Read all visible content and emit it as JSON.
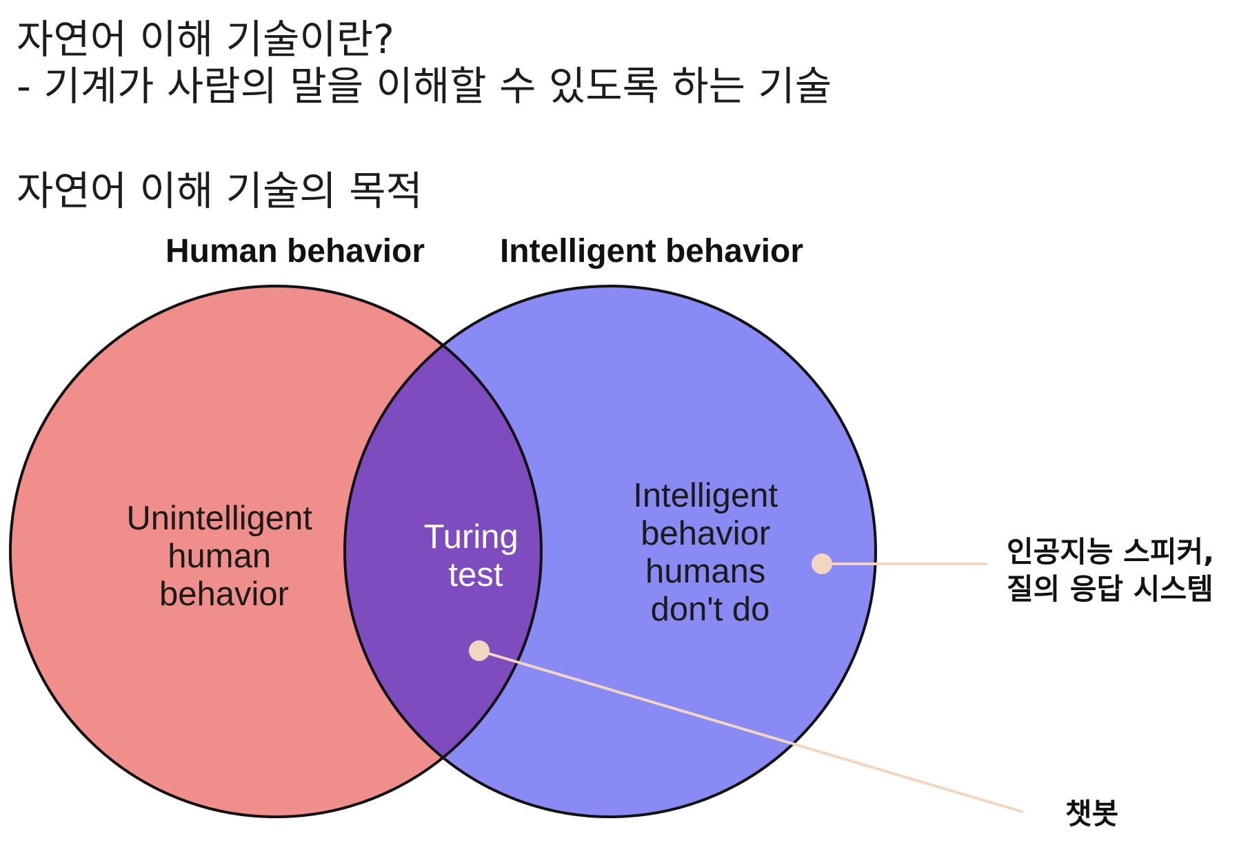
{
  "headings": {
    "line1": "자연어 이해 기술이란?",
    "line2": " - 기계가 사람의 말을 이해할 수 있도록 하는 기술",
    "line3": "자연어 이해 기술의 목적"
  },
  "venn": {
    "left_set": {
      "title": "Human behavior",
      "color": "#ef8e8a",
      "region_label": [
        "Unintelligent",
        "human",
        "behavior"
      ]
    },
    "right_set": {
      "title": "Intelligent behavior",
      "color": "#8a8af5",
      "region_label": [
        "Intelligent",
        "behavior",
        "humans",
        "don't do"
      ]
    },
    "overlap": {
      "color": "#7f4cc0",
      "region_label": [
        "Turing",
        "test"
      ]
    },
    "outline_color": "#111111",
    "inner_arc_color": "#1c1c7a"
  },
  "callouts": {
    "right_region": [
      "인공지능 스피커,",
      "질의 응답 시스템"
    ],
    "overlap": [
      "챗봇"
    ],
    "line_color": "#f2d6c0"
  }
}
